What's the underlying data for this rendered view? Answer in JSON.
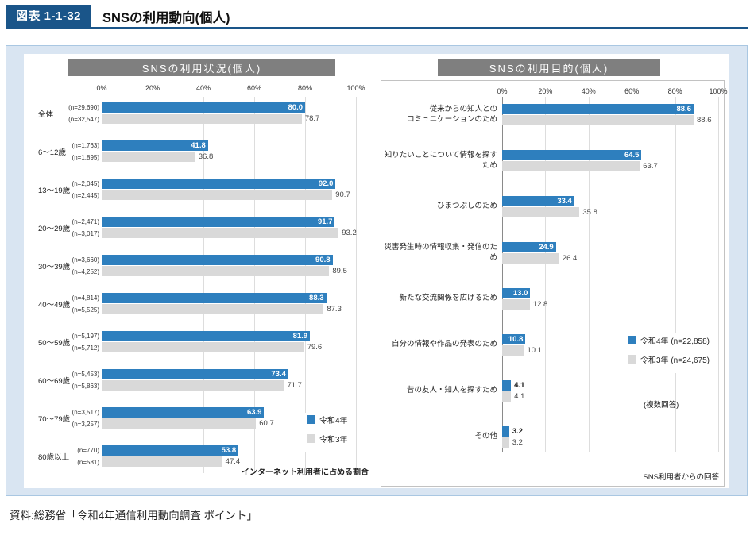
{
  "header": {
    "figure_label": "図表 1-1-32",
    "title": "SNSの利用動向(個人)"
  },
  "source": "資料:総務省「令和4年通信利用動向調査 ポイント」",
  "colors": {
    "accent_blue": "#1a5589",
    "bar_blue": "#2e7fbe",
    "bar_gray": "#d9d9d9",
    "panel_bg": "#d9e5f2",
    "chart_title_bg": "#7f7f7f"
  },
  "chart_data": [
    {
      "type": "bar",
      "orientation": "horizontal",
      "title": "SNSの利用状況(個人)",
      "note": "インターネット利用者に占める割合",
      "xlim": [
        0,
        100
      ],
      "x_ticks": [
        "0%",
        "20%",
        "40%",
        "60%",
        "80%",
        "100%"
      ],
      "legend_position": "right-middle",
      "grid": true,
      "categories": [
        "全体",
        "6〜12歳",
        "13〜19歳",
        "20〜29歳",
        "30〜39歳",
        "40〜49歳",
        "50〜59歳",
        "60〜69歳",
        "70〜79歳",
        "80歳以上"
      ],
      "sample_sizes_r4": [
        "(n=29,690)",
        "(n=1,763)",
        "(n=2,045)",
        "(n=2,471)",
        "(n=3,660)",
        "(n=4,814)",
        "(n=5,197)",
        "(n=5,453)",
        "(n=3,517)",
        "(n=770)"
      ],
      "sample_sizes_r3": [
        "(n=32,547)",
        "(n=1,895)",
        "(n=2,445)",
        "(n=3,017)",
        "(n=4,252)",
        "(n=5,525)",
        "(n=5,712)",
        "(n=5,863)",
        "(n=3,257)",
        "(n=581)"
      ],
      "series": [
        {
          "name": "令和4年",
          "color": "#2e7fbe",
          "values": [
            80.0,
            41.8,
            92.0,
            91.7,
            90.8,
            88.3,
            81.9,
            73.4,
            63.9,
            53.8
          ]
        },
        {
          "name": "令和3年",
          "color": "#d9d9d9",
          "values": [
            78.7,
            36.8,
            90.7,
            93.2,
            89.5,
            87.3,
            79.6,
            71.7,
            60.7,
            47.4
          ]
        }
      ]
    },
    {
      "type": "bar",
      "orientation": "horizontal",
      "title": "SNSの利用目的(個人)",
      "note": "SNS利用者からの回答",
      "extra_note": "(複数回答)",
      "xlim": [
        0,
        100
      ],
      "x_ticks": [
        "0%",
        "20%",
        "40%",
        "60%",
        "80%",
        "100%"
      ],
      "legend_position": "right-middle",
      "grid": true,
      "categories": [
        "従来からの知人との\nコミュニケーションのため",
        "知りたいことについて情報を探すため",
        "ひまつぶしのため",
        "災害発生時の情報収集・発信のため",
        "新たな交流関係を広げるため",
        "自分の情報や作品の発表のため",
        "昔の友人・知人を探すため",
        "その他"
      ],
      "series": [
        {
          "name": "令和4年 (n=22,858)",
          "color": "#2e7fbe",
          "values": [
            88.6,
            64.5,
            33.4,
            24.9,
            13.0,
            10.8,
            4.1,
            3.2
          ]
        },
        {
          "name": "令和3年 (n=24,675)",
          "color": "#d9d9d9",
          "values": [
            88.6,
            63.7,
            35.8,
            26.4,
            12.8,
            10.1,
            4.1,
            3.2
          ]
        }
      ]
    }
  ]
}
